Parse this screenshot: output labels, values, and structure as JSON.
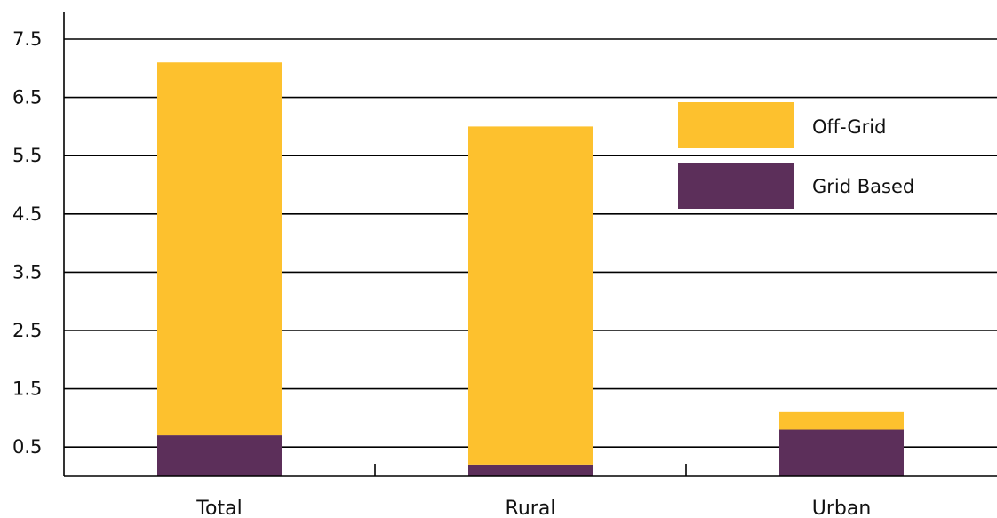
{
  "chart_data": {
    "type": "bar",
    "stacked": true,
    "categories": [
      "Total",
      "Rural",
      "Urban"
    ],
    "series": [
      {
        "name": "Grid Based",
        "values": [
          0.7,
          0.2,
          0.8
        ],
        "color": "#5c2f5a"
      },
      {
        "name": "Off-Grid",
        "values": [
          6.4,
          5.8,
          0.3
        ],
        "color": "#fdc12e"
      }
    ],
    "yticks": [
      "0.5",
      "1.5",
      "2.5",
      "3.5",
      "4.5",
      "5.5",
      "6.5",
      "7.5"
    ],
    "ylim": [
      0,
      8.1
    ],
    "grid": true,
    "legend_position": "top-right",
    "legend_order": [
      "Off-Grid",
      "Grid Based"
    ],
    "title": "",
    "xlabel": "",
    "ylabel": ""
  }
}
